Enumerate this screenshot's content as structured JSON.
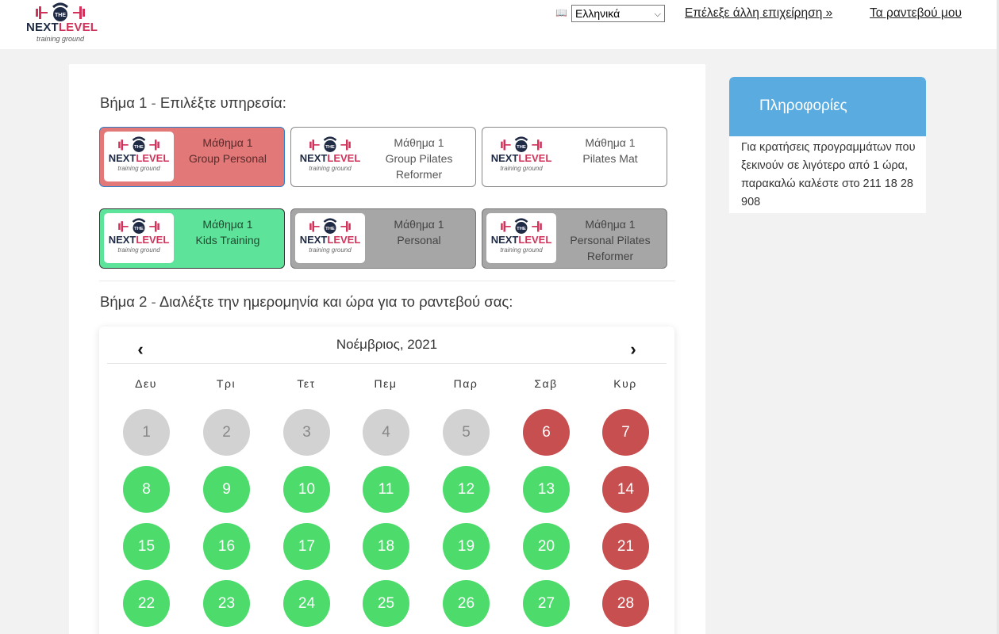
{
  "header": {
    "logo": {
      "top": "THE",
      "next": "NEXT",
      "level": "LEVEL",
      "sub": "training ground"
    },
    "language_icon": "book-icon",
    "language": {
      "selected": "Ελληνικά"
    },
    "links": {
      "other_business": "Επέλεξε άλλη επιχείρηση »",
      "my_appointments": "Τα ραντεβού μου"
    }
  },
  "step1": {
    "title": "Βήμα 1",
    "sep": " - ",
    "text": "Επιλέξτε υπηρεσία:"
  },
  "services": [
    {
      "line1": "Μάθημα 1",
      "line2": "Group Personal",
      "line3": "",
      "state": "selected-red"
    },
    {
      "line1": "Μάθημα 1",
      "line2": "Group Pilates",
      "line3": "Reformer",
      "state": "default"
    },
    {
      "line1": "Μάθημα 1",
      "line2": "Pilates Mat",
      "line3": "",
      "state": "default"
    },
    {
      "line1": "Μάθημα 1",
      "line2": "Kids Training",
      "line3": "",
      "state": "green"
    },
    {
      "line1": "Μάθημα 1",
      "line2": "Personal",
      "line3": "",
      "state": "disabled"
    },
    {
      "line1": "Μάθημα 1",
      "line2": "Personal Pilates",
      "line3": "Reformer",
      "state": "disabled"
    }
  ],
  "step2": {
    "title": "Βήμα 2",
    "sep": " - ",
    "text": "Διαλέξτε την ημερομηνία και ώρα για το ραντεβού σας:"
  },
  "calendar": {
    "month_label": "Νοέμβριος, 2021",
    "prev_icon": "chevron-left-icon",
    "next_icon": "chevron-right-icon",
    "prev_glyph": "‹",
    "next_glyph": "›",
    "weekdays": [
      "Δευ",
      "Τρι",
      "Τετ",
      "Πεμ",
      "Παρ",
      "Σαβ",
      "Κυρ"
    ],
    "weeks": [
      [
        {
          "d": "1",
          "s": "past"
        },
        {
          "d": "2",
          "s": "past"
        },
        {
          "d": "3",
          "s": "past"
        },
        {
          "d": "4",
          "s": "past"
        },
        {
          "d": "5",
          "s": "past"
        },
        {
          "d": "6",
          "s": "full"
        },
        {
          "d": "7",
          "s": "full"
        }
      ],
      [
        {
          "d": "8",
          "s": "avail"
        },
        {
          "d": "9",
          "s": "avail"
        },
        {
          "d": "10",
          "s": "avail"
        },
        {
          "d": "11",
          "s": "avail"
        },
        {
          "d": "12",
          "s": "avail"
        },
        {
          "d": "13",
          "s": "avail"
        },
        {
          "d": "14",
          "s": "full"
        }
      ],
      [
        {
          "d": "15",
          "s": "avail"
        },
        {
          "d": "16",
          "s": "avail"
        },
        {
          "d": "17",
          "s": "avail"
        },
        {
          "d": "18",
          "s": "avail"
        },
        {
          "d": "19",
          "s": "avail"
        },
        {
          "d": "20",
          "s": "avail"
        },
        {
          "d": "21",
          "s": "full"
        }
      ],
      [
        {
          "d": "22",
          "s": "avail"
        },
        {
          "d": "23",
          "s": "avail"
        },
        {
          "d": "24",
          "s": "avail"
        },
        {
          "d": "25",
          "s": "avail"
        },
        {
          "d": "26",
          "s": "avail"
        },
        {
          "d": "27",
          "s": "avail"
        },
        {
          "d": "28",
          "s": "full"
        }
      ]
    ],
    "colors": {
      "available": "#4ddc6c",
      "full": "#c84f50",
      "past": "#d2d2d2"
    }
  },
  "info": {
    "title": "Πληροφορίες",
    "body": "Για κρατήσεις προγραμμάτων που ξεκινούν σε λιγότερο από 1 ώρα, παρακαλώ καλέστε στο 211 18 28 908"
  }
}
